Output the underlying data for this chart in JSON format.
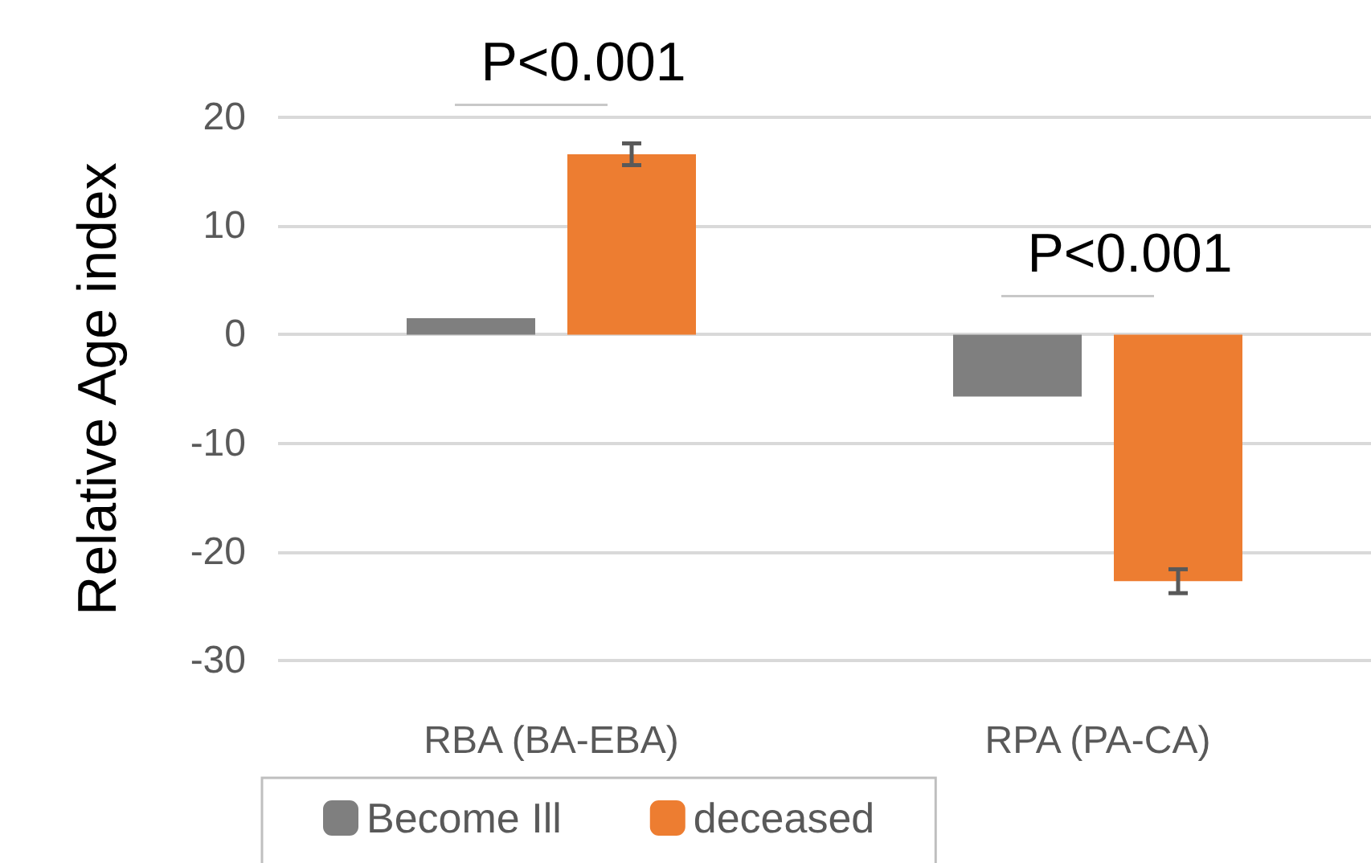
{
  "chart_data": {
    "type": "bar",
    "ylabel": "Relative Age index",
    "categories": [
      "RBA (BA-EBA)",
      "RPA (PA-CA)"
    ],
    "series": [
      {
        "name": "Become Ill",
        "color": "#7f7f7f",
        "values": [
          1.5,
          -5.7
        ]
      },
      {
        "name": "deceased",
        "color": "#ed7d31",
        "values": [
          16.6,
          -22.7
        ],
        "errors": [
          1,
          1.1
        ]
      }
    ],
    "ylim": [
      -30,
      20
    ],
    "yticks": [
      -30,
      -20,
      -10,
      0,
      10,
      20
    ],
    "grid": "y",
    "legend": "bottom",
    "annotations": [
      "P<0.001",
      "P<0.001"
    ]
  }
}
